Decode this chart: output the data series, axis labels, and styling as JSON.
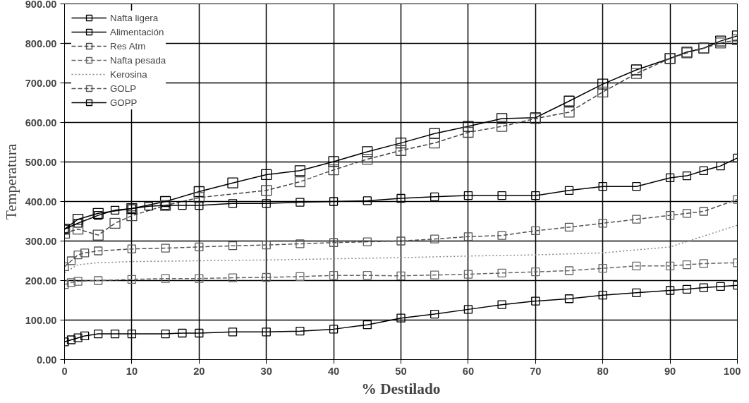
{
  "chart_data": {
    "type": "line",
    "xlabel": "% Destilado",
    "ylabel": "Temperatura",
    "xlim": [
      0,
      100
    ],
    "xticks": [
      0,
      10,
      20,
      30,
      40,
      50,
      60,
      70,
      80,
      90,
      100
    ],
    "ylim": [
      0,
      900
    ],
    "yticks": [
      {
        "value": 0,
        "label": "0.00"
      },
      {
        "value": 100,
        "label": "100.00"
      },
      {
        "value": 200,
        "label": "200.00"
      },
      {
        "value": 300,
        "label": "300.00"
      },
      {
        "value": 400,
        "label": "400.00"
      },
      {
        "value": 500,
        "label": "500.00"
      },
      {
        "value": 600,
        "label": "600.00"
      },
      {
        "value": 700,
        "label": "700.00"
      },
      {
        "value": 800,
        "label": "800.00"
      },
      {
        "value": 900,
        "label": "900.00"
      }
    ],
    "grid": true,
    "legend": "top left",
    "marker": "square",
    "series": [
      {
        "name": "Nafta ligera",
        "color": "#000000",
        "line_style": "solid",
        "x": [
          0,
          1,
          2,
          3,
          5,
          7.5,
          10,
          15,
          17.5,
          20,
          25,
          30,
          35,
          40,
          45,
          50,
          55,
          60,
          65,
          70,
          75,
          80,
          85,
          90,
          92.5,
          95,
          97.5,
          100
        ],
        "values": [
          45,
          50,
          55,
          60,
          65,
          65,
          65,
          65,
          67,
          67,
          70,
          70,
          72,
          77,
          88,
          105,
          115,
          127,
          139,
          148,
          154,
          163,
          169,
          175,
          178,
          182,
          185,
          188
        ]
      },
      {
        "name": "Alimentación",
        "color": "#000000",
        "line_style": "solid",
        "x": [
          0,
          2,
          5,
          10,
          15,
          20,
          25,
          30,
          35,
          40,
          45,
          50,
          55,
          60,
          65,
          70,
          75,
          80,
          85,
          90,
          92.5,
          95,
          97.5,
          100
        ],
        "values": [
          330,
          355,
          370,
          382,
          400,
          425,
          447,
          468,
          478,
          501,
          526,
          548,
          572,
          590,
          610,
          612,
          654,
          697,
          733,
          762,
          778,
          788,
          806,
          819
        ]
      },
      {
        "name": "Res Atm",
        "color": "#444444",
        "line_style": "dashed",
        "x": [
          0,
          2,
          5,
          7.5,
          10,
          15,
          20,
          30,
          35,
          40,
          45,
          50,
          55,
          60,
          65,
          70,
          75,
          80,
          85,
          90,
          92.5,
          95,
          97.5,
          100
        ],
        "values": [
          320,
          330,
          315,
          345,
          364,
          390,
          410,
          428,
          450,
          480,
          507,
          529,
          548,
          575,
          590,
          610,
          626,
          677,
          724,
          762,
          776,
          788,
          801,
          809
        ]
      },
      {
        "name": "Nafta pesada",
        "color": "#666666",
        "line_style": "dashed",
        "x": [
          0,
          1,
          2,
          5,
          10,
          15,
          20,
          25,
          30,
          35,
          40,
          45,
          50,
          55,
          60,
          65,
          70,
          75,
          80,
          85,
          90,
          92.5,
          95,
          100
        ],
        "values": [
          190,
          195,
          198,
          200,
          203,
          205,
          205,
          207,
          208,
          210,
          213,
          213,
          212,
          214,
          216,
          219,
          222,
          225,
          231,
          237,
          237,
          240,
          243,
          245
        ]
      },
      {
        "name": "Kerosina",
        "color": "#888888",
        "line_style": "dotted",
        "marker": "none",
        "x": [
          0,
          2,
          5,
          10,
          20,
          30,
          40,
          50,
          60,
          70,
          80,
          90,
          100
        ],
        "values": [
          220,
          240,
          245,
          248,
          250,
          252,
          255,
          258,
          262,
          265,
          270,
          285,
          340
        ]
      },
      {
        "name": "GOLP",
        "color": "#555555",
        "line_style": "dashed",
        "x": [
          0,
          1,
          2,
          3,
          5,
          10,
          15,
          20,
          25,
          30,
          35,
          40,
          45,
          50,
          55,
          60,
          65,
          70,
          75,
          80,
          85,
          90,
          92.5,
          95,
          100
        ],
        "values": [
          235,
          250,
          265,
          270,
          275,
          280,
          282,
          285,
          288,
          290,
          293,
          296,
          298,
          300,
          305,
          311,
          314,
          326,
          335,
          345,
          355,
          365,
          370,
          375,
          405
        ]
      },
      {
        "name": "GOPP",
        "color": "#000000",
        "line_style": "solid",
        "x": [
          0,
          2,
          5,
          7.5,
          10,
          12.5,
          15,
          17.5,
          20,
          25,
          30,
          35,
          40,
          45,
          50,
          55,
          60,
          65,
          70,
          75,
          80,
          85,
          90,
          92.5,
          95,
          97.5,
          100
        ],
        "values": [
          330,
          345,
          365,
          378,
          382,
          388,
          390,
          390,
          390,
          395,
          395,
          398,
          400,
          402,
          408,
          412,
          415,
          415,
          415,
          428,
          438,
          438,
          460,
          465,
          478,
          490,
          510
        ]
      }
    ]
  }
}
